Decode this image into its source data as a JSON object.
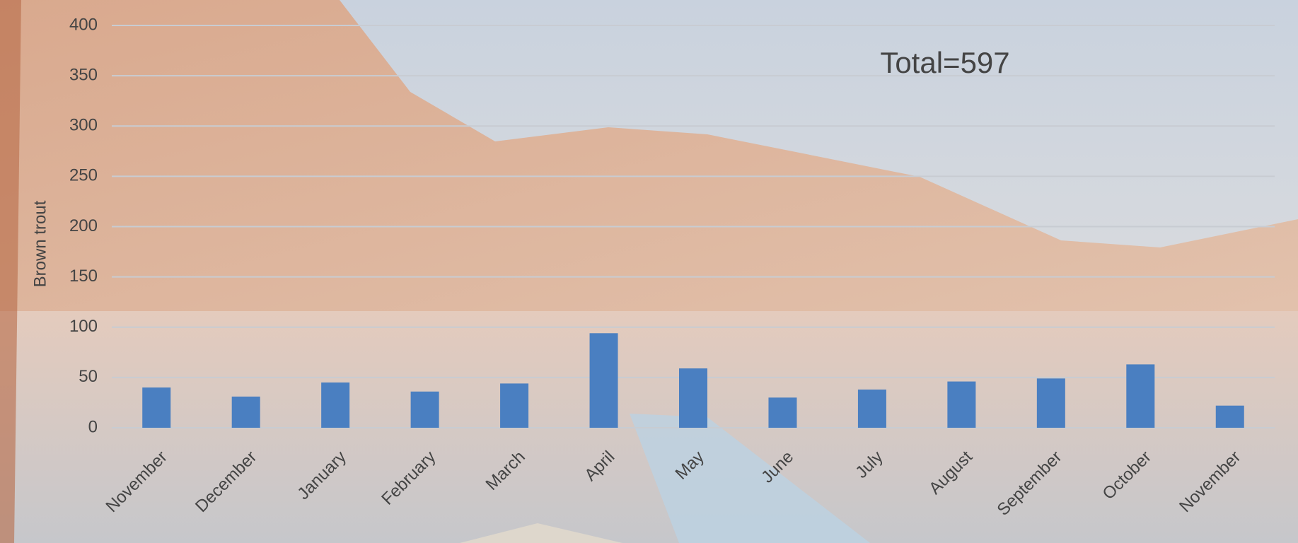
{
  "chart_data": {
    "type": "bar",
    "categories": [
      "November",
      "December",
      "January",
      "February",
      "March",
      "April",
      "May",
      "June",
      "July",
      "August",
      "September",
      "October",
      "November"
    ],
    "values": [
      40,
      31,
      45,
      36,
      44,
      94,
      59,
      30,
      38,
      46,
      49,
      63,
      22
    ],
    "color": "#4a7fc1",
    "y_label": "Brown trout",
    "annotation": "Total=597",
    "ylim": [
      0,
      400
    ],
    "yticks": [
      0,
      50,
      100,
      150,
      200,
      250,
      300,
      350,
      400
    ],
    "grid": true
  }
}
